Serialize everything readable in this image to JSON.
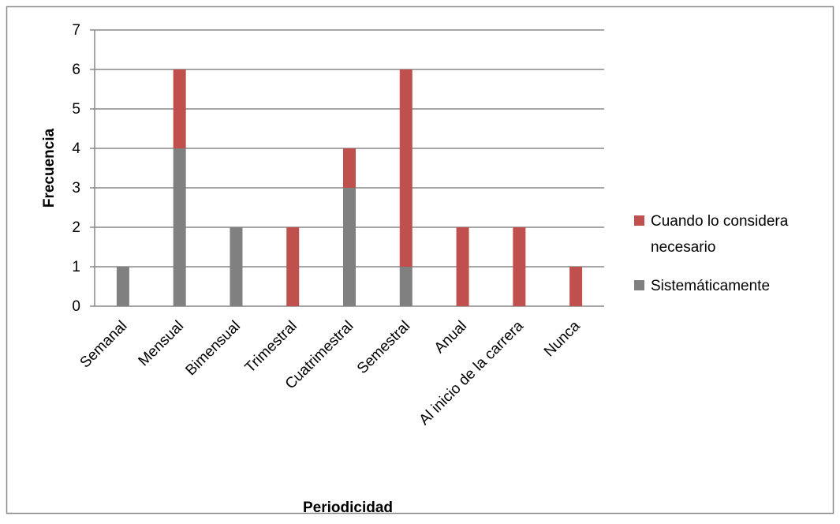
{
  "chart_data": {
    "type": "bar",
    "stacked": true,
    "xlabel": "Periodicidad",
    "ylabel": "Frecuencia",
    "ylim": [
      0,
      7
    ],
    "yticks": [
      "0",
      "1",
      "2",
      "3",
      "4",
      "5",
      "6",
      "7"
    ],
    "grid": true,
    "legend_position": "right",
    "categories": [
      "Semanal",
      "Mensual",
      "Bimensual",
      "Trimestral",
      "Cuatrimestral",
      "Semestral",
      "Anual",
      "Al inicio de la carrera",
      "Nunca"
    ],
    "series": [
      {
        "name": "Sistemáticamente",
        "color": "#808080",
        "values": [
          1,
          4,
          2,
          0,
          3,
          1,
          0,
          0,
          0
        ]
      },
      {
        "name": "Cuando lo considera necesario",
        "color": "#c0504d",
        "values": [
          0,
          2,
          0,
          2,
          1,
          5,
          2,
          2,
          1
        ]
      }
    ],
    "legend": {
      "line1": "Cuando lo considera",
      "line2": "necesario",
      "line3": "Sistemáticamente"
    }
  }
}
